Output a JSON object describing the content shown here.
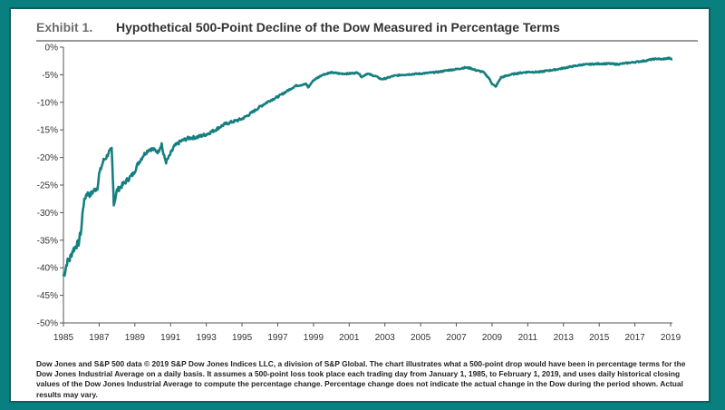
{
  "exhibit": {
    "label": "Exhibit 1.",
    "title": "Hypothetical 500-Point Decline of the Dow Measured in Percentage Terms"
  },
  "colors": {
    "line": "#157f80",
    "background": "#0a7f80",
    "axis": "#555555"
  },
  "chart_data": {
    "type": "line",
    "title": "Hypothetical 500-Point Decline of the Dow Measured in Percentage Terms",
    "xlabel": "",
    "ylabel": "",
    "xlim": [
      1985,
      2019.1
    ],
    "ylim": [
      -50,
      0
    ],
    "grid": false,
    "x_ticks": [
      1985,
      1987,
      1989,
      1991,
      1993,
      1995,
      1997,
      1999,
      2001,
      2003,
      2005,
      2007,
      2009,
      2011,
      2013,
      2015,
      2017,
      2019
    ],
    "x_tick_labels": [
      "1985",
      "1987",
      "1989",
      "1991",
      "1993",
      "1995",
      "1997",
      "1999",
      "2001",
      "2003",
      "2005",
      "2007",
      "2009",
      "2011",
      "2013",
      "2015",
      "2017",
      "2019"
    ],
    "y_ticks": [
      0,
      -5,
      -10,
      -15,
      -20,
      -25,
      -30,
      -35,
      -40,
      -45,
      -50
    ],
    "y_tick_labels": [
      "0%",
      "-5%",
      "-10%",
      "-15%",
      "-20%",
      "-25%",
      "-30%",
      "-35%",
      "-40%",
      "-45%",
      "-50%"
    ],
    "series": [
      {
        "x": [
          1985.0,
          1985.1,
          1985.2,
          1985.35,
          1985.5,
          1985.7,
          1985.85,
          1986.0,
          1986.1,
          1986.2,
          1986.3,
          1986.5,
          1986.7,
          1986.9,
          1987.0,
          1987.1,
          1987.25,
          1987.4,
          1987.55,
          1987.7,
          1987.8,
          1987.82,
          1988.0,
          1988.3,
          1988.6,
          1988.9,
          1989.2,
          1989.5,
          1989.8,
          1990.0,
          1990.3,
          1990.5,
          1990.6,
          1990.75,
          1990.9,
          1991.2,
          1991.6,
          1992.0,
          1992.5,
          1993.0,
          1993.5,
          1994.0,
          1994.5,
          1995.0,
          1995.5,
          1996.0,
          1996.5,
          1997.0,
          1997.5,
          1998.0,
          1998.6,
          1998.7,
          1999.0,
          1999.5,
          2000.0,
          2000.5,
          2001.0,
          2001.5,
          2001.7,
          2002.0,
          2002.5,
          2002.8,
          2003.0,
          2003.5,
          2004.0,
          2005.0,
          2006.0,
          2006.5,
          2007.0,
          2007.5,
          2007.8,
          2008.0,
          2008.5,
          2008.8,
          2009.0,
          2009.2,
          2009.5,
          2010.0,
          2010.5,
          2011.0,
          2011.7,
          2012.0,
          2012.5,
          2013.0,
          2013.5,
          2014.0,
          2015.0,
          2015.6,
          2016.0,
          2016.5,
          2017.0,
          2017.5,
          2018.0,
          2018.2,
          2018.5,
          2018.9,
          2019.1
        ],
        "values": [
          -41.5,
          -40.5,
          -39.0,
          -38.5,
          -37.0,
          -36.0,
          -35.5,
          -33.0,
          -29.0,
          -27.5,
          -26.5,
          -26.8,
          -26.0,
          -25.5,
          -23.0,
          -22.0,
          -20.5,
          -20.0,
          -19.0,
          -18.5,
          -26.5,
          -28.5,
          -26.0,
          -25.0,
          -24.0,
          -23.0,
          -21.0,
          -19.5,
          -18.5,
          -18.5,
          -19.0,
          -17.5,
          -19.5,
          -20.8,
          -20.0,
          -18.0,
          -17.0,
          -16.5,
          -16.3,
          -15.8,
          -15.0,
          -14.0,
          -13.5,
          -13.0,
          -12.0,
          -10.8,
          -9.8,
          -9.0,
          -8.0,
          -7.0,
          -6.7,
          -7.3,
          -6.0,
          -5.0,
          -4.6,
          -4.8,
          -4.8,
          -4.6,
          -5.4,
          -4.8,
          -5.3,
          -5.8,
          -5.7,
          -5.2,
          -5.0,
          -4.8,
          -4.5,
          -4.2,
          -4.0,
          -3.7,
          -3.8,
          -4.1,
          -4.5,
          -5.5,
          -6.6,
          -7.2,
          -5.5,
          -5.0,
          -4.7,
          -4.5,
          -4.5,
          -4.3,
          -4.1,
          -3.8,
          -3.5,
          -3.2,
          -3.0,
          -3.0,
          -3.1,
          -2.9,
          -2.7,
          -2.5,
          -2.2,
          -2.1,
          -2.2,
          -2.0,
          -2.2
        ]
      }
    ]
  },
  "footnote": "Dow Jones and S&P 500 data © 2019 S&P Dow Jones Indices LLC, a division of S&P Global. The chart illustrates what a 500-point drop would have been in percentage terms for the Dow Jones Industrial Average on a daily basis. It assumes a 500-point loss took place each trading day from January 1, 1985, to February 1, 2019, and uses daily historical closing values of the Dow Jones Industrial Average to compute the percentage change. Percentage change does not indicate the actual change in the Dow during the period shown. Actual results may vary."
}
